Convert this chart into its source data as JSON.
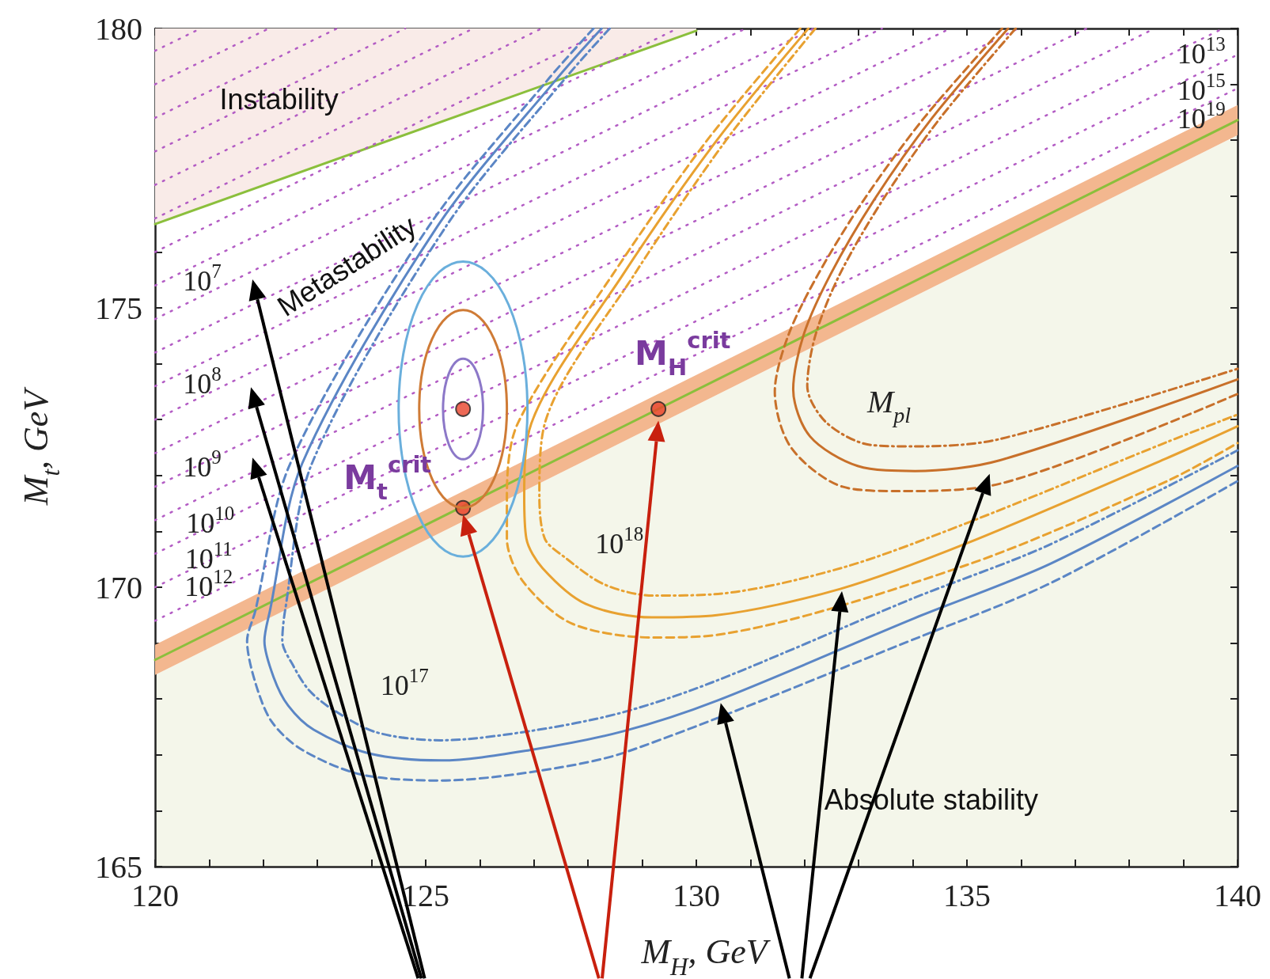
{
  "chart_data": {
    "type": "line",
    "xlabel": "M$_{H}$, GeV",
    "ylabel": "M$_{t}$, GeV",
    "marker": "none",
    "xlim": [
      120,
      140
    ],
    "ylim": [
      165,
      180
    ],
    "xticks": [
      120,
      {
        "value": 121,
        "label": null
      },
      {
        "value": 122,
        "label": null
      },
      {
        "value": 123,
        "label": null
      },
      {
        "value": 124,
        "label": null
      },
      125,
      {
        "value": 126,
        "label": null
      },
      {
        "value": 127,
        "label": null
      },
      {
        "value": 128,
        "label": null
      },
      {
        "value": 129,
        "label": null
      },
      130,
      {
        "value": 131,
        "label": null
      },
      {
        "value": 132,
        "label": null
      },
      {
        "value": 133,
        "label": null
      },
      {
        "value": 134,
        "label": null
      },
      135,
      {
        "value": 136,
        "label": null
      },
      {
        "value": 137,
        "label": null
      },
      {
        "value": 138,
        "label": null
      },
      {
        "value": 139,
        "label": null
      },
      140
    ],
    "yticks": [
      165,
      {
        "value": 166,
        "label": null
      },
      {
        "value": 167,
        "label": null
      },
      {
        "value": 168,
        "label": null
      },
      {
        "value": 169,
        "label": null
      },
      170,
      {
        "value": 171,
        "label": null
      },
      {
        "value": 172,
        "label": null
      },
      {
        "value": 173,
        "label": null
      },
      {
        "value": 174,
        "label": null
      },
      175,
      {
        "value": 176,
        "label": null
      },
      {
        "value": 177,
        "label": null
      },
      {
        "value": 178,
        "label": null
      },
      {
        "value": 179,
        "label": null
      },
      180
    ],
    "series": [
      {
        "type": "area",
        "color": "#f4f6ea",
        "x": [
          120,
          140
        ],
        "values": [
          168.43,
          178.09
        ]
      },
      {
        "color": "#8bbf3c",
        "line_style": "solid",
        "x": [
          120,
          130
        ],
        "values": [
          176.5,
          179.96
        ],
        "lower": [
          176.5,
          179.96
        ],
        "upper": [
          180,
          180
        ]
      },
      {
        "color": "#8bbf3c",
        "line_style": "solid",
        "x": [
          120,
          140
        ],
        "values": [
          168.7,
          178.36
        ],
        "lower": [
          168.43,
          178.09
        ],
        "upper": [
          168.97,
          178.63
        ]
      },
      {
        "color": "#b35cc4",
        "line_style": "dotted",
        "x": [
          120,
          140
        ],
        "values": [
          169.4,
          178.93
        ]
      },
      {
        "color": "#b35cc4",
        "line_style": "dotted",
        "x": [
          120,
          140
        ],
        "values": [
          170.0,
          179.53
        ]
      },
      {
        "color": "#b35cc4",
        "line_style": "dotted",
        "x": [
          120,
          139.73
        ],
        "values": [
          170.6,
          180
        ]
      },
      {
        "color": "#b35cc4",
        "line_style": "dotted",
        "x": [
          120,
          138.47
        ],
        "values": [
          171.2,
          180
        ]
      },
      {
        "color": "#b35cc4",
        "line_style": "dotted",
        "x": [
          120,
          137.21
        ],
        "values": [
          171.8,
          180
        ]
      },
      {
        "color": "#b35cc4",
        "line_style": "dotted",
        "x": [
          120,
          135.95
        ],
        "values": [
          172.4,
          180
        ]
      },
      {
        "color": "#b35cc4",
        "line_style": "dotted",
        "x": [
          120,
          134.69
        ],
        "values": [
          173.0,
          180
        ]
      },
      {
        "color": "#b35cc4",
        "line_style": "dotted",
        "x": [
          120,
          133.43
        ],
        "values": [
          173.6,
          180
        ]
      },
      {
        "color": "#b35cc4",
        "line_style": "dotted",
        "x": [
          120,
          132.17
        ],
        "values": [
          174.2,
          180
        ]
      },
      {
        "color": "#b35cc4",
        "line_style": "dotted",
        "x": [
          120,
          130.91
        ],
        "values": [
          174.8,
          180
        ]
      },
      {
        "color": "#b35cc4",
        "line_style": "dotted",
        "x": [
          120,
          129.65
        ],
        "values": [
          175.4,
          180
        ]
      },
      {
        "color": "#b35cc4",
        "line_style": "dotted",
        "x": [
          120,
          128.39
        ],
        "values": [
          176.0,
          180
        ]
      },
      {
        "color": "#b35cc4",
        "line_style": "dotted",
        "x": [
          120,
          127.14
        ],
        "values": [
          176.6,
          180
        ]
      },
      {
        "color": "#b35cc4",
        "line_style": "dotted",
        "x": [
          120,
          125.88
        ],
        "values": [
          177.2,
          180
        ]
      },
      {
        "color": "#b35cc4",
        "line_style": "dotted",
        "x": [
          120,
          124.62
        ],
        "values": [
          177.8,
          180
        ]
      },
      {
        "color": "#b35cc4",
        "line_style": "dotted",
        "x": [
          120,
          123.36
        ],
        "values": [
          178.4,
          180
        ]
      },
      {
        "color": "#b35cc4",
        "line_style": "dotted",
        "x": [
          120,
          122.1
        ],
        "values": [
          179.0,
          180
        ]
      },
      {
        "color": "#b35cc4",
        "line_style": "dotted",
        "x": [
          120,
          120.84
        ],
        "values": [
          179.6,
          180
        ]
      },
      {
        "color": "#5b86c5",
        "line_style": "solid",
        "x": [
          128.25,
          127.43,
          125.21,
          122.72,
          122.12,
          122.02,
          122.19,
          122.46,
          122.93,
          123.94,
          125.28,
          126.95,
          128.64,
          130.38,
          134.04,
          136.54,
          140
        ],
        "values": [
          180,
          179.11,
          176.45,
          172.22,
          169.57,
          169.04,
          168.39,
          167.88,
          167.45,
          167.03,
          166.9,
          167.09,
          167.42,
          167.97,
          169.45,
          170.42,
          172.17
        ]
      },
      {
        "color": "#5b86c5",
        "line_style": "dashed",
        "x": [
          128.1,
          127.28,
          125.05,
          122.5,
          121.85,
          121.7,
          121.85,
          122.15,
          122.7,
          123.8,
          125.28,
          127.0,
          128.7,
          134.1,
          136.6,
          140
        ],
        "values": [
          180,
          179.11,
          176.45,
          172.22,
          169.57,
          169.04,
          168.3,
          167.6,
          167.1,
          166.65,
          166.54,
          166.7,
          167.05,
          169.1,
          170.1,
          171.9
        ]
      },
      {
        "color": "#5b86c5",
        "line_style": "dashdot",
        "x": [
          128.4,
          127.58,
          125.37,
          122.9,
          122.4,
          122.35,
          122.55,
          122.85,
          123.3,
          124.1,
          125.28,
          126.95,
          128.6,
          130.3,
          134.0,
          136.5,
          140
        ],
        "values": [
          180,
          179.11,
          176.45,
          172.22,
          169.57,
          169.04,
          168.6,
          168.15,
          167.8,
          167.4,
          167.26,
          167.43,
          167.75,
          168.3,
          169.8,
          170.75,
          172.45
        ]
      },
      {
        "color": "#e8a130",
        "line_style": "solid",
        "x": [
          132.07,
          130.38,
          128.64,
          126.95,
          126.82,
          126.86,
          127.16,
          127.96,
          129.18,
          130.38,
          132.66,
          134.98,
          138.67,
          140
        ],
        "values": [
          180,
          178.0,
          175.59,
          172.93,
          171.64,
          170.87,
          170.34,
          169.7,
          169.46,
          169.5,
          169.97,
          170.78,
          172.3,
          172.88
        ]
      },
      {
        "color": "#e8a130",
        "line_style": "dashed",
        "x": [
          131.92,
          130.2,
          128.45,
          126.7,
          126.5,
          126.5,
          126.8,
          127.7,
          129.2,
          130.4,
          135.0,
          138.7,
          140
        ],
        "values": [
          180,
          178.0,
          175.59,
          172.93,
          171.64,
          170.87,
          170.1,
          169.35,
          169.1,
          169.15,
          170.4,
          171.9,
          172.58
        ]
      },
      {
        "color": "#e8a130",
        "line_style": "dashdot",
        "x": [
          132.2,
          130.55,
          128.85,
          127.2,
          127.1,
          127.2,
          127.55,
          128.3,
          129.2,
          130.4,
          132.7,
          135.0,
          138.7,
          140
        ],
        "values": [
          180,
          178.0,
          175.59,
          172.93,
          171.64,
          170.87,
          170.55,
          170.05,
          169.85,
          169.88,
          170.35,
          171.15,
          172.6,
          173.09
        ]
      },
      {
        "color": "#c8702a",
        "line_style": "solid",
        "x": [
          135.76,
          134.35,
          133.29,
          132.48,
          131.98,
          131.79,
          132.1,
          132.98,
          134.04,
          135.6,
          140
        ],
        "values": [
          180,
          178.39,
          176.94,
          175.6,
          174.51,
          173.54,
          172.7,
          172.17,
          172.08,
          172.27,
          173.72
        ]
      },
      {
        "color": "#c8702a",
        "line_style": "dashed",
        "x": [
          135.65,
          134.2,
          133.1,
          132.25,
          131.7,
          131.45,
          131.75,
          132.7,
          133.73,
          135.6,
          140
        ],
        "values": [
          180,
          178.39,
          176.94,
          175.6,
          174.51,
          173.5,
          172.5,
          171.8,
          171.72,
          171.85,
          173.46
        ]
      },
      {
        "color": "#c8702a",
        "line_style": "dashdot",
        "x": [
          135.9,
          134.5,
          133.45,
          132.65,
          132.2,
          132.05,
          132.4,
          133.2,
          134.04,
          135.6,
          140
        ],
        "values": [
          180,
          178.39,
          176.94,
          175.6,
          174.51,
          173.6,
          172.95,
          172.55,
          172.52,
          172.65,
          173.91
        ]
      },
      {
        "type": "scatter",
        "color": "#e8442c",
        "marker": "circle",
        "x": [
          125.69,
          125.69,
          129.3
        ],
        "values": [
          173.19,
          171.42,
          173.19
        ]
      }
    ],
    "annotations": [
      "Instability",
      "Metastability",
      "Absolute stability",
      "10$^{7}$",
      "10$^{8}$",
      "10$^{9}$",
      "10$^{10}$",
      "10$^{11}$",
      "10$^{12}$",
      "10$^{13}$",
      "10$^{15}$",
      "10$^{19}$",
      "10$^{17}$",
      "10$^{18}$",
      "M$_{pl}$",
      {
        "text": "M$_{t}$$^{crit}$",
        "x": 125.69,
        "y": 171.42
      },
      {
        "text": "M$_{H}$$^{crit}$",
        "x": 129.3,
        "y": 173.19
      }
    ]
  }
}
